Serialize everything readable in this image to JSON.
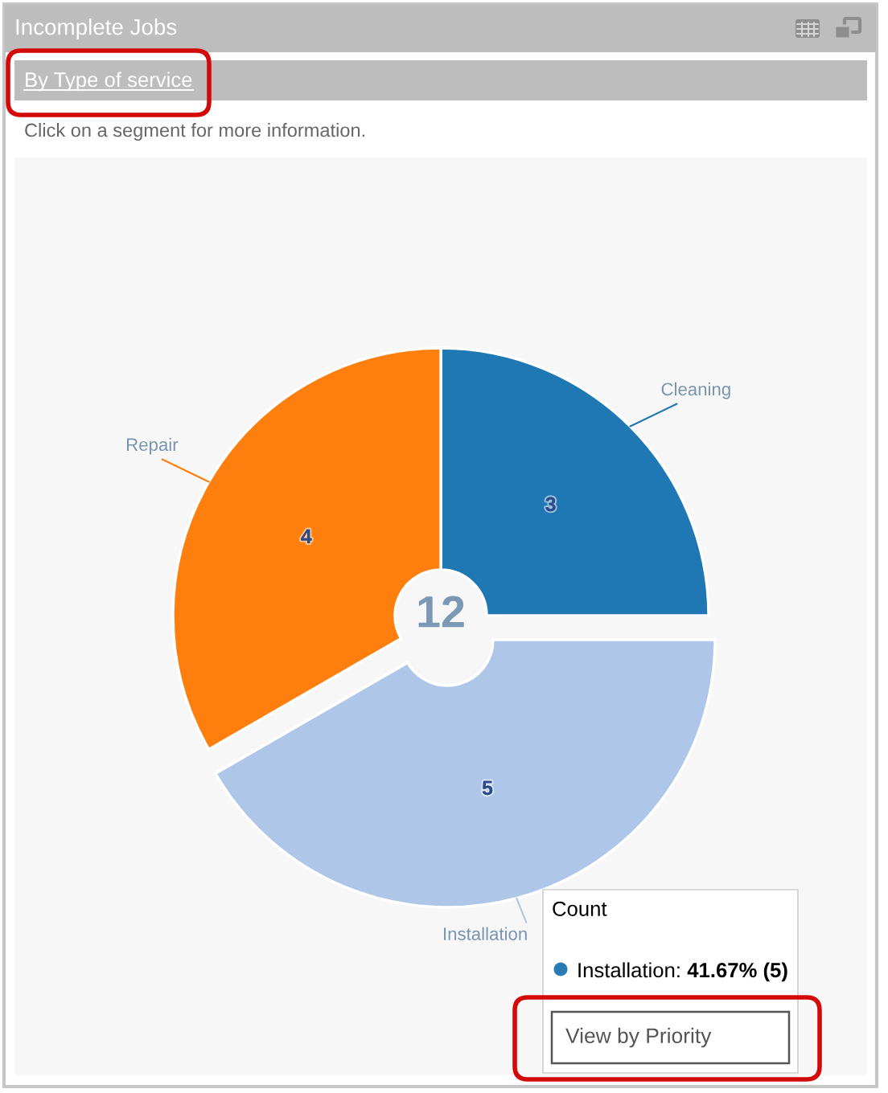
{
  "chart_data": {
    "type": "donut",
    "title": "Incomplete Jobs",
    "subtitle": "By Type of service",
    "categories": [
      "Cleaning",
      "Installation",
      "Repair"
    ],
    "values": [
      3,
      5,
      4
    ],
    "colors": [
      "#1f77b4",
      "#aec7e8",
      "#ff7f0e"
    ],
    "data_labels": true,
    "annotations": [
      "Click on a segment for more information.",
      "12",
      "Count",
      "Installation:",
      "41.67% (5)",
      "View by Priority"
    ]
  }
}
